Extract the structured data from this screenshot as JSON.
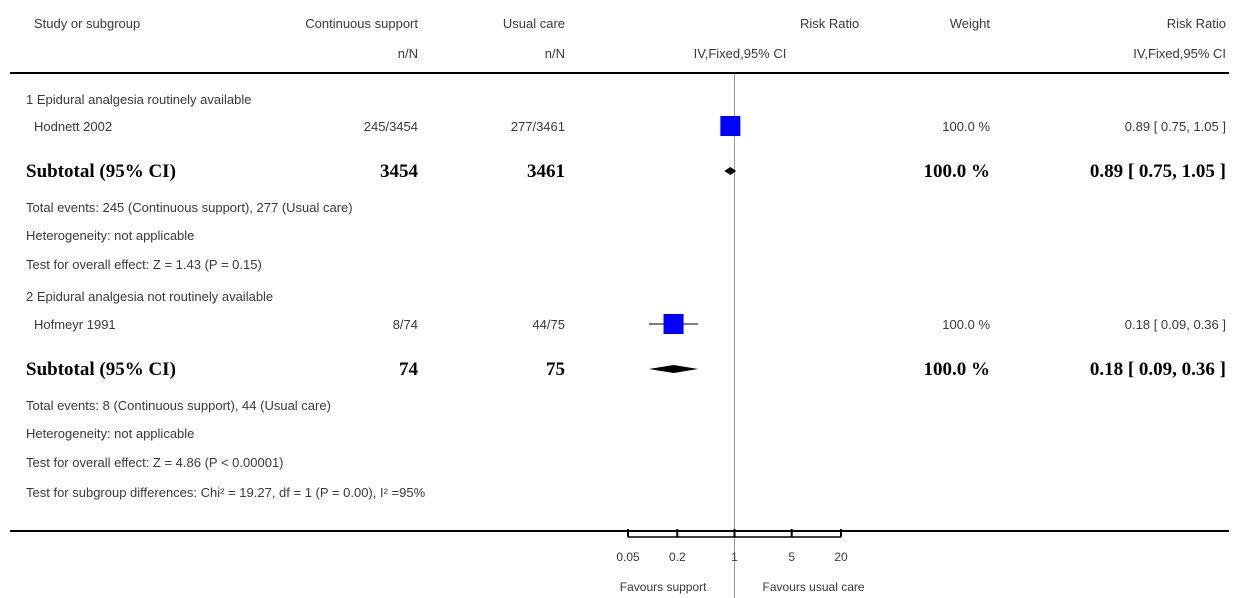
{
  "header": {
    "study": "Study or subgroup",
    "treat": "Continuous support",
    "treat_sub": "n/N",
    "control": "Usual care",
    "control_sub": "n/N",
    "rr": "Risk Ratio",
    "rr_sub": "IV,Fixed,95% CI",
    "weight": "Weight",
    "rr2": "Risk Ratio",
    "rr2_sub": "IV,Fixed,95% CI"
  },
  "groups": [
    {
      "label": "1 Epidural analgesia routinely available",
      "study": {
        "name": "Hodnett 2002",
        "treat": "245/3454",
        "control": "277/3461",
        "weight": "100.0 %",
        "ci_text": "0.89 [ 0.75, 1.05 ]"
      },
      "subtotal": {
        "label": "Subtotal (95% CI)",
        "treat": "3454",
        "control": "3461",
        "weight": "100.0 %",
        "ci_text": "0.89 [ 0.75, 1.05 ]"
      },
      "notes": [
        "Total events: 245 (Continuous support), 277 (Usual care)",
        "Heterogeneity: not applicable",
        "Test for overall effect: Z = 1.43 (P = 0.15)"
      ]
    },
    {
      "label": "2 Epidural analgesia not routinely available",
      "study": {
        "name": "Hofmeyr 1991",
        "treat": "8/74",
        "control": "44/75",
        "weight": "100.0 %",
        "ci_text": "0.18 [ 0.09, 0.36 ]"
      },
      "subtotal": {
        "label": "Subtotal (95% CI)",
        "treat": "74",
        "control": "75",
        "weight": "100.0 %",
        "ci_text": "0.18 [ 0.09, 0.36 ]"
      },
      "notes": [
        "Total events: 8 (Continuous support), 44 (Usual care)",
        "Heterogeneity: not applicable",
        "Test for overall effect: Z = 4.86 (P < 0.00001)"
      ]
    }
  ],
  "subgroup_test": "Test for subgroup differences: Chi² = 19.27, df = 1 (P = 0.00), I² =95%",
  "axis": {
    "ticks": [
      "0.05",
      "0.2",
      "1",
      "5",
      "20"
    ],
    "left_label": "Favours support",
    "right_label": "Favours usual care"
  },
  "chart_data": {
    "type": "forest",
    "scale": "log",
    "xlim": [
      0.05,
      20
    ],
    "ticks": [
      0.05,
      0.2,
      1,
      5,
      20
    ],
    "studies": [
      {
        "name": "Hodnett 2002",
        "rr": 0.89,
        "lo": 0.75,
        "hi": 1.05,
        "weight": 100.0
      },
      {
        "name": "Hofmeyr 1991",
        "rr": 0.18,
        "lo": 0.09,
        "hi": 0.36,
        "weight": 100.0
      }
    ],
    "subtotals": [
      {
        "rr": 0.89,
        "lo": 0.75,
        "hi": 1.05
      },
      {
        "rr": 0.18,
        "lo": 0.09,
        "hi": 0.36
      }
    ],
    "colors": {
      "box": "#0000ff",
      "diamond": "#000000",
      "axis": "#000000",
      "null_line": "#999999"
    }
  }
}
